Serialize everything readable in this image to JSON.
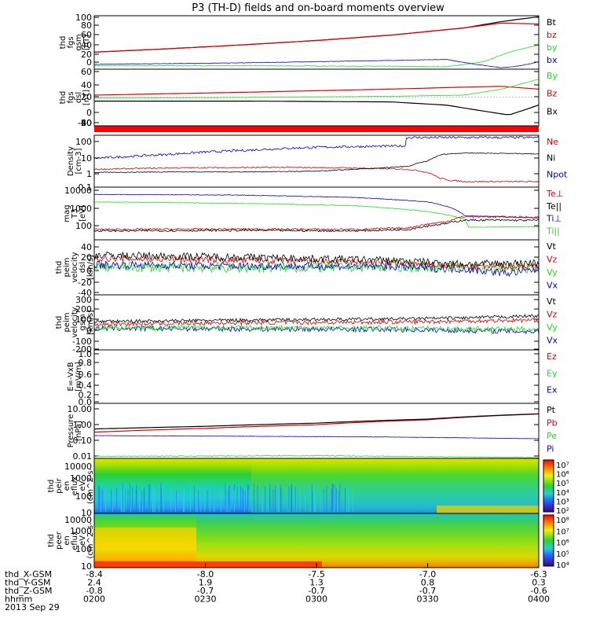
{
  "title": "P3 (TH-D) fields and on-board moments overview",
  "date": "2013 Sep 29",
  "colors": {
    "black": "#000000",
    "red": "#dd0000",
    "green": "#22dd22",
    "blue": "#0000cc"
  },
  "chart_data": [
    {
      "type": "line",
      "id": "fgs_gsm",
      "ylabel": [
        "thd",
        "fgs",
        "gsm",
        "[nT]"
      ],
      "yticks": [
        "100",
        "80",
        "60",
        "40",
        "20",
        "0"
      ],
      "ylim": [
        -5,
        105
      ],
      "xlim": [
        0,
        120
      ],
      "legend": [
        {
          "text": "Bt",
          "color": "#000000"
        },
        {
          "text": "bz",
          "color": "#dd0000"
        },
        {
          "text": "by",
          "color": "#22dd22"
        },
        {
          "text": "bx",
          "color": "#0000cc"
        }
      ],
      "series": [
        {
          "name": "Bt",
          "color": "#000000",
          "noise": 0,
          "x": [
            0,
            20,
            40,
            60,
            80,
            100,
            110,
            120
          ],
          "y": [
            30,
            37,
            45,
            54,
            65,
            80,
            93,
            103
          ]
        },
        {
          "name": "bz",
          "color": "#dd0000",
          "noise": 0,
          "x": [
            0,
            20,
            40,
            60,
            80,
            100,
            110,
            120
          ],
          "y": [
            30,
            37,
            45,
            54,
            65,
            80,
            90,
            88
          ]
        },
        {
          "name": "by",
          "color": "#22dd22",
          "noise": 0.6,
          "x": [
            0,
            40,
            80,
            95,
            105,
            112,
            120
          ],
          "y": [
            2,
            2,
            1,
            0,
            10,
            30,
            45
          ]
        },
        {
          "name": "bx",
          "color": "#0000cc",
          "noise": 0.4,
          "x": [
            0,
            40,
            80,
            95,
            103,
            110,
            115,
            120
          ],
          "y": [
            5,
            8,
            13,
            15,
            5,
            -2,
            2,
            10
          ]
        }
      ]
    },
    {
      "type": "line",
      "id": "fgs_dsl",
      "ylabel": [
        "thd",
        "fgs",
        "dsl",
        "[nT]"
      ],
      "yticks": [
        "60",
        "40",
        "20",
        "0",
        "-20",
        "-40",
        "-60"
      ],
      "ylim": [
        -72,
        70
      ],
      "xlim": [
        0,
        120
      ],
      "legend": [
        {
          "text": "By",
          "color": "#22dd22"
        },
        {
          "text": "Bz",
          "color": "#dd0000"
        },
        {
          "text": "Bx",
          "color": "#000000"
        }
      ],
      "series": [
        {
          "name": "Bz",
          "color": "#dd0000",
          "noise": 0,
          "x": [
            0,
            40,
            80,
            100,
            110,
            120
          ],
          "y": [
            5,
            12,
            20,
            25,
            27,
            20
          ]
        },
        {
          "name": "By",
          "color": "#22dd22",
          "noise": 0.4,
          "x": [
            0,
            40,
            80,
            100,
            110,
            120
          ],
          "y": [
            -2,
            -1,
            2,
            5,
            20,
            45
          ]
        },
        {
          "name": "Bx",
          "color": "#000000",
          "noise": 0,
          "x": [
            0,
            40,
            80,
            95,
            105,
            112,
            120
          ],
          "y": [
            -10,
            -10,
            -12,
            -20,
            -35,
            -45,
            -20
          ]
        }
      ]
    },
    {
      "type": "line",
      "id": "density",
      "ylabel": [
        "Density",
        "[cm-3]"
      ],
      "yticks": [
        "100",
        "10",
        "1",
        "0.1"
      ],
      "ylog": true,
      "ylim": [
        0.03,
        300
      ],
      "xlim": [
        0,
        120
      ],
      "legend": [
        {
          "text": "Ne",
          "color": "#dd0000"
        },
        {
          "text": "Ni",
          "color": "#000000"
        },
        {
          "text": "Npot",
          "color": "#0000cc"
        }
      ],
      "series": [
        {
          "name": "Npot",
          "color": "#0000cc",
          "noise": 0.09,
          "x": [
            0,
            10,
            20,
            40,
            60,
            70,
            84,
            84.1
          ],
          "y": [
            5,
            7,
            10,
            20,
            35,
            40,
            45,
            200
          ]
        },
        {
          "name": "Ne",
          "color": "#dd0000",
          "noise": 0.05,
          "x": [
            0,
            20,
            50,
            70,
            85,
            90,
            93,
            96,
            100,
            120
          ],
          "y": [
            0.7,
            0.9,
            1.0,
            0.9,
            0.7,
            0.4,
            0.15,
            0.1,
            0.08,
            0.08
          ]
        },
        {
          "name": "Ni",
          "color": "#000000",
          "noise": 0.03,
          "x": [
            0,
            20,
            40,
            60,
            75,
            85,
            90,
            92,
            94,
            100,
            120
          ],
          "y": [
            0.4,
            0.45,
            0.45,
            0.5,
            0.8,
            1.2,
            3,
            6,
            10,
            13,
            11
          ]
        }
      ]
    },
    {
      "type": "line",
      "id": "temperature",
      "ylabel": [
        "mag",
        "T3",
        "[eV]"
      ],
      "yticks": [
        "10000",
        "1000",
        "100"
      ],
      "ylog": true,
      "ylim": [
        30,
        14000
      ],
      "xlim": [
        0,
        120
      ],
      "legend": [
        {
          "text": "Te⊥",
          "color": "#dd0000"
        },
        {
          "text": "Te||",
          "color": "#000000"
        },
        {
          "text": "Ti⊥",
          "color": "#0000cc"
        },
        {
          "text": "Ti||",
          "color": "#22dd22"
        }
      ],
      "series": [
        {
          "name": "Ti⊥",
          "color": "#0000cc",
          "noise": 0.015,
          "x": [
            0,
            40,
            70,
            90,
            100,
            120
          ],
          "y": [
            6000,
            5500,
            4200,
            2500,
            500,
            380
          ]
        },
        {
          "name": "Ti||",
          "color": "#22dd22",
          "noise": 0.015,
          "x": [
            0,
            40,
            70,
            90,
            100,
            101,
            120
          ],
          "y": [
            2500,
            2100,
            1600,
            800,
            320,
            130,
            140
          ]
        },
        {
          "name": "Te⊥",
          "color": "#dd0000",
          "noise": 0.05,
          "x": [
            0,
            40,
            70,
            85,
            95,
            100,
            120
          ],
          "y": [
            100,
            105,
            100,
            120,
            250,
            450,
            420
          ]
        },
        {
          "name": "Te||",
          "color": "#000000",
          "noise": 0.05,
          "x": [
            0,
            40,
            70,
            85,
            95,
            100,
            120
          ],
          "y": [
            85,
            90,
            85,
            100,
            200,
            300,
            290
          ]
        }
      ]
    },
    {
      "type": "line",
      "id": "peim_dsl",
      "ylabel": [
        "thd",
        "peim",
        "velocity",
        "dsl",
        "[km/s]"
      ],
      "yticks": [
        "40",
        "20",
        "0",
        "-20",
        "-40"
      ],
      "ylim": [
        -42,
        44
      ],
      "xlim": [
        0,
        120
      ],
      "legend": [
        {
          "text": "Vt",
          "color": "#000000"
        },
        {
          "text": "Vz",
          "color": "#dd0000"
        },
        {
          "text": "Vy",
          "color": "#22dd22"
        },
        {
          "text": "Vx",
          "color": "#0000cc"
        }
      ],
      "series": [
        {
          "name": "Vy",
          "color": "#22dd22",
          "noise": 8,
          "x": [
            0,
            40,
            80,
            100,
            120
          ],
          "y": [
            2,
            0,
            2,
            0,
            0
          ]
        },
        {
          "name": "Vx",
          "color": "#0000cc",
          "noise": 6,
          "x": [
            0,
            40,
            80,
            100,
            112,
            120
          ],
          "y": [
            5,
            3,
            2,
            -2,
            -8,
            -2
          ]
        },
        {
          "name": "Vz",
          "color": "#dd0000",
          "noise": 5,
          "x": [
            0,
            40,
            80,
            100,
            120
          ],
          "y": [
            15,
            12,
            8,
            2,
            3
          ]
        },
        {
          "name": "Vt",
          "color": "#000000",
          "noise": 6,
          "x": [
            0,
            40,
            80,
            100,
            120
          ],
          "y": [
            20,
            17,
            12,
            6,
            8
          ]
        }
      ]
    },
    {
      "type": "line",
      "id": "peim_gsm",
      "ylabel": [
        "thd",
        "peim",
        "velocity",
        "gsm",
        "[km/s]"
      ],
      "yticks": [
        "300",
        "200",
        "100",
        "0",
        "-100",
        "-200"
      ],
      "ylim": [
        -215,
        310
      ],
      "xlim": [
        0,
        120
      ],
      "legend": [
        {
          "text": "Vt",
          "color": "#000000"
        },
        {
          "text": "Vz",
          "color": "#dd0000"
        },
        {
          "text": "Vy",
          "color": "#22dd22"
        },
        {
          "text": "Vx",
          "color": "#0000cc"
        }
      ],
      "series": [
        {
          "name": "Vx",
          "color": "#0000cc",
          "noise": 25,
          "x": [
            0,
            40,
            80,
            120
          ],
          "y": [
            -10,
            -15,
            -20,
            -40
          ]
        },
        {
          "name": "Vy",
          "color": "#22dd22",
          "noise": 25,
          "x": [
            0,
            40,
            80,
            120
          ],
          "y": [
            0,
            -5,
            -10,
            -20
          ]
        },
        {
          "name": "Vz",
          "color": "#dd0000",
          "noise": 20,
          "x": [
            0,
            40,
            80,
            100,
            120
          ],
          "y": [
            30,
            45,
            50,
            60,
            70
          ]
        },
        {
          "name": "Vt",
          "color": "#000000",
          "noise": 15,
          "x": [
            0,
            40,
            80,
            100,
            120
          ],
          "y": [
            55,
            70,
            80,
            90,
            110
          ]
        }
      ]
    },
    {
      "type": "line",
      "id": "efield",
      "ylabel": [
        "E=-VxB",
        "[mV/m]"
      ],
      "yticks": [
        "1.0",
        "0.8",
        "0.6",
        "0.4",
        "0.2",
        "0.0"
      ],
      "ylim": [
        0,
        1
      ],
      "xlim": [
        0,
        120
      ],
      "legend": [
        {
          "text": "Ez",
          "color": "#dd0000"
        },
        {
          "text": "Ey",
          "color": "#22dd22"
        },
        {
          "text": "Ex",
          "color": "#0000cc"
        }
      ],
      "series": []
    },
    {
      "type": "line",
      "id": "pressure",
      "ylabel": [
        "Pressure",
        "[nPa]"
      ],
      "yticks": [
        "10.00",
        "1.00",
        "0.10",
        "0.01"
      ],
      "ylog": true,
      "ylim": [
        0.009,
        20
      ],
      "xlim": [
        0,
        120
      ],
      "legend": [
        {
          "text": "Pt",
          "color": "#000000"
        },
        {
          "text": "Pb",
          "color": "#dd0000"
        },
        {
          "text": "Pe",
          "color": "#22dd22"
        },
        {
          "text": "Pi",
          "color": "#0000cc"
        }
      ],
      "series": [
        {
          "name": "Pe",
          "color": "#22dd22",
          "noise": 0.02,
          "x": [
            0,
            60,
            100,
            120
          ],
          "y": [
            0.012,
            0.013,
            0.011,
            0.01
          ]
        },
        {
          "name": "Pi",
          "color": "#0000cc",
          "noise": 0.01,
          "x": [
            0,
            40,
            80,
            100,
            120
          ],
          "y": [
            0.22,
            0.2,
            0.18,
            0.16,
            0.14
          ]
        },
        {
          "name": "Pb",
          "color": "#dd0000",
          "noise": 0,
          "x": [
            0,
            30,
            60,
            90,
            120
          ],
          "y": [
            0.35,
            0.6,
            1.0,
            2.0,
            4.5
          ]
        },
        {
          "name": "Pt",
          "color": "#000000",
          "noise": 0,
          "x": [
            0,
            30,
            60,
            90,
            120
          ],
          "y": [
            0.55,
            0.8,
            1.25,
            2.2,
            4.6
          ]
        }
      ]
    },
    {
      "type": "heatmap",
      "id": "peir",
      "ylabel": [
        "thd",
        "peir",
        "en",
        "eflux",
        "eV",
        "(cm^2-s-",
        "sr-eV)"
      ],
      "yticks": [
        "10000",
        "1000",
        "100",
        "10"
      ],
      "colorbar_ticks": [
        "10⁷",
        "10⁶",
        "10⁵",
        "10⁴",
        "10³",
        "10²"
      ]
    },
    {
      "type": "heatmap",
      "id": "peer",
      "ylabel": [
        "thd",
        "peer",
        "en",
        "eflux",
        "eV",
        "(cm^2-s-",
        "sr-eV)"
      ],
      "yticks": [
        "10000",
        "1000",
        "100",
        "10"
      ],
      "colorbar_ticks": [
        "10⁸",
        "10⁷",
        "10⁶",
        "10⁵",
        "10⁴"
      ]
    }
  ],
  "xaxis": {
    "rows": [
      {
        "label": "thd_X-GSM",
        "values": [
          "-8.4",
          "-8.0",
          "-7.5",
          "-7.0",
          "-6.3"
        ]
      },
      {
        "label": "thd_Y-GSM",
        "values": [
          "2.4",
          "1.9",
          "1.3",
          "0.8",
          "0.3"
        ]
      },
      {
        "label": "thd_Z-GSM",
        "values": [
          "-0.8",
          "-0.7",
          "-0.7",
          "-0.7",
          "-0.6"
        ]
      },
      {
        "label": "hhmm",
        "values": [
          "0200",
          "0230",
          "0300",
          "0330",
          "0400"
        ]
      }
    ]
  }
}
